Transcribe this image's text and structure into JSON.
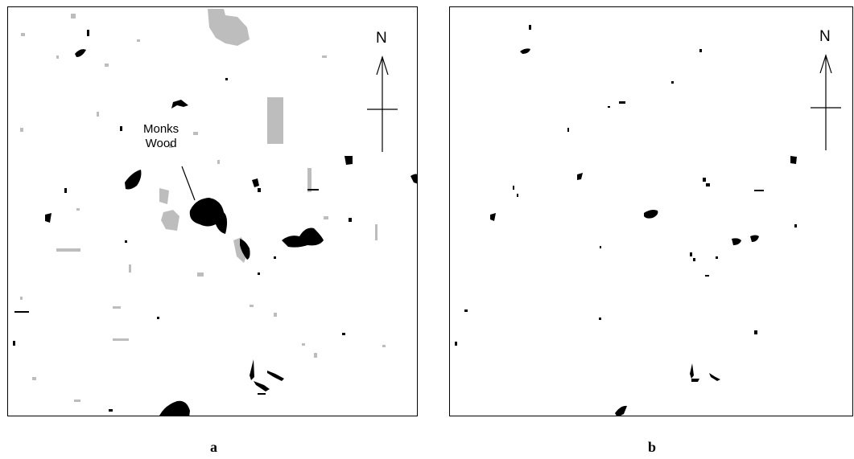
{
  "panels": [
    {
      "id": "a",
      "caption": "a",
      "north_label": "N",
      "annotation": {
        "line1": "Monks",
        "line2": "Wood"
      }
    },
    {
      "id": "b",
      "caption": "b",
      "north_label": "N"
    }
  ],
  "colors": {
    "woodland": "#000000",
    "grey_area": "#bdbdbd",
    "background": "#ffffff",
    "frame": "#000000"
  }
}
